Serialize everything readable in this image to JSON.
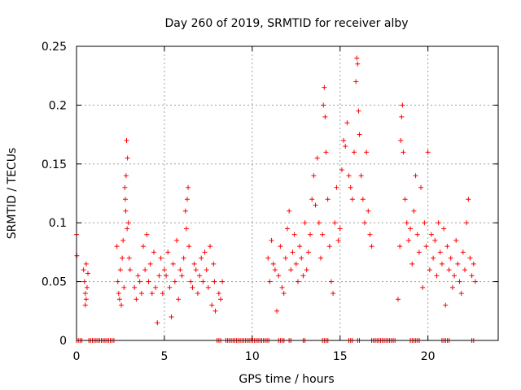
{
  "chart_data": {
    "type": "scatter",
    "title": "Day 260 of 2019, SRMTID for receiver alby",
    "xlabel": "GPS time / hours",
    "ylabel": "SRMTID / TECUs",
    "xlim": [
      0,
      24
    ],
    "ylim": [
      0,
      0.25
    ],
    "xticks": [
      0,
      5,
      10,
      15,
      20
    ],
    "xtick_labels": [
      "0",
      "5",
      "10",
      "15",
      "20"
    ],
    "yticks": [
      0,
      0.05,
      0.1,
      0.15,
      0.2,
      0.25
    ],
    "ytick_labels": [
      "0",
      "0.05",
      "0.1",
      "0.15",
      "0.2",
      "0.25"
    ],
    "grid": true,
    "marker": "+",
    "color": "#ff0000",
    "series": [
      {
        "name": "SRMTID",
        "points": [
          [
            0.0,
            0.09
          ],
          [
            0.02,
            0.072
          ],
          [
            0.4,
            0.06
          ],
          [
            0.45,
            0.05
          ],
          [
            0.5,
            0.04
          ],
          [
            0.55,
            0.035
          ],
          [
            0.6,
            0.045
          ],
          [
            0.65,
            0.057
          ],
          [
            0.5,
            0.03
          ],
          [
            0.55,
            0.065
          ],
          [
            2.3,
            0.08
          ],
          [
            2.35,
            0.05
          ],
          [
            2.4,
            0.04
          ],
          [
            2.45,
            0.035
          ],
          [
            2.5,
            0.06
          ],
          [
            2.55,
            0.03
          ],
          [
            2.6,
            0.07
          ],
          [
            2.65,
            0.085
          ],
          [
            2.7,
            0.045
          ],
          [
            2.75,
            0.13
          ],
          [
            2.8,
            0.11
          ],
          [
            2.85,
            0.17
          ],
          [
            2.9,
            0.155
          ],
          [
            2.95,
            0.1
          ],
          [
            2.78,
            0.12
          ],
          [
            2.82,
            0.14
          ],
          [
            2.88,
            0.095
          ],
          [
            3.0,
            0.07
          ],
          [
            3.05,
            0.06
          ],
          [
            3.3,
            0.045
          ],
          [
            3.4,
            0.035
          ],
          [
            3.5,
            0.055
          ],
          [
            3.6,
            0.05
          ],
          [
            3.7,
            0.04
          ],
          [
            3.8,
            0.08
          ],
          [
            3.9,
            0.06
          ],
          [
            4.0,
            0.09
          ],
          [
            4.1,
            0.05
          ],
          [
            4.2,
            0.065
          ],
          [
            4.3,
            0.04
          ],
          [
            4.4,
            0.075
          ],
          [
            4.5,
            0.045
          ],
          [
            4.6,
            0.015
          ],
          [
            4.7,
            0.055
          ],
          [
            4.8,
            0.07
          ],
          [
            4.9,
            0.04
          ],
          [
            5.0,
            0.06
          ],
          [
            5.1,
            0.055
          ],
          [
            5.2,
            0.075
          ],
          [
            5.3,
            0.045
          ],
          [
            5.4,
            0.02
          ],
          [
            5.5,
            0.065
          ],
          [
            5.6,
            0.05
          ],
          [
            5.7,
            0.085
          ],
          [
            5.8,
            0.035
          ],
          [
            5.9,
            0.06
          ],
          [
            6.0,
            0.055
          ],
          [
            6.1,
            0.07
          ],
          [
            6.2,
            0.11
          ],
          [
            6.25,
            0.095
          ],
          [
            6.3,
            0.12
          ],
          [
            6.35,
            0.13
          ],
          [
            6.4,
            0.08
          ],
          [
            6.5,
            0.05
          ],
          [
            6.6,
            0.045
          ],
          [
            6.7,
            0.065
          ],
          [
            6.8,
            0.06
          ],
          [
            6.9,
            0.04
          ],
          [
            7.0,
            0.055
          ],
          [
            7.1,
            0.07
          ],
          [
            7.2,
            0.05
          ],
          [
            7.3,
            0.075
          ],
          [
            7.4,
            0.06
          ],
          [
            7.5,
            0.045
          ],
          [
            7.6,
            0.08
          ],
          [
            7.7,
            0.03
          ],
          [
            7.8,
            0.065
          ],
          [
            7.85,
            0.05
          ],
          [
            7.9,
            0.025
          ],
          [
            8.1,
            0.04
          ],
          [
            8.2,
            0.035
          ],
          [
            8.3,
            0.05
          ],
          [
            10.9,
            0.07
          ],
          [
            11.0,
            0.05
          ],
          [
            11.1,
            0.085
          ],
          [
            11.2,
            0.065
          ],
          [
            11.3,
            0.06
          ],
          [
            11.4,
            0.025
          ],
          [
            11.5,
            0.055
          ],
          [
            11.6,
            0.08
          ],
          [
            11.7,
            0.045
          ],
          [
            11.8,
            0.04
          ],
          [
            11.9,
            0.07
          ],
          [
            12.0,
            0.095
          ],
          [
            12.1,
            0.11
          ],
          [
            12.2,
            0.06
          ],
          [
            12.3,
            0.075
          ],
          [
            12.4,
            0.09
          ],
          [
            12.5,
            0.065
          ],
          [
            12.6,
            0.05
          ],
          [
            12.7,
            0.08
          ],
          [
            12.8,
            0.07
          ],
          [
            12.9,
            0.055
          ],
          [
            13.0,
            0.1
          ],
          [
            13.1,
            0.06
          ],
          [
            13.2,
            0.075
          ],
          [
            13.3,
            0.09
          ],
          [
            13.4,
            0.12
          ],
          [
            13.5,
            0.14
          ],
          [
            13.6,
            0.115
          ],
          [
            13.7,
            0.155
          ],
          [
            13.8,
            0.1
          ],
          [
            13.9,
            0.07
          ],
          [
            14.0,
            0.09
          ],
          [
            14.05,
            0.2
          ],
          [
            14.1,
            0.215
          ],
          [
            14.15,
            0.19
          ],
          [
            14.2,
            0.16
          ],
          [
            14.3,
            0.12
          ],
          [
            14.4,
            0.08
          ],
          [
            14.5,
            0.05
          ],
          [
            14.6,
            0.04
          ],
          [
            14.7,
            0.1
          ],
          [
            14.8,
            0.13
          ],
          [
            14.9,
            0.085
          ],
          [
            15.0,
            0.095
          ],
          [
            15.1,
            0.145
          ],
          [
            15.2,
            0.17
          ],
          [
            15.3,
            0.165
          ],
          [
            15.4,
            0.185
          ],
          [
            15.5,
            0.14
          ],
          [
            15.6,
            0.13
          ],
          [
            15.7,
            0.12
          ],
          [
            15.8,
            0.16
          ],
          [
            15.9,
            0.22
          ],
          [
            15.95,
            0.24
          ],
          [
            16.0,
            0.235
          ],
          [
            16.05,
            0.195
          ],
          [
            16.1,
            0.175
          ],
          [
            16.2,
            0.14
          ],
          [
            16.3,
            0.12
          ],
          [
            16.4,
            0.1
          ],
          [
            16.5,
            0.16
          ],
          [
            16.6,
            0.11
          ],
          [
            16.7,
            0.09
          ],
          [
            16.8,
            0.08
          ],
          [
            18.3,
            0.035
          ],
          [
            18.4,
            0.08
          ],
          [
            18.45,
            0.17
          ],
          [
            18.5,
            0.19
          ],
          [
            18.55,
            0.2
          ],
          [
            18.6,
            0.16
          ],
          [
            18.7,
            0.12
          ],
          [
            18.8,
            0.1
          ],
          [
            18.9,
            0.085
          ],
          [
            19.0,
            0.095
          ],
          [
            19.1,
            0.065
          ],
          [
            19.2,
            0.11
          ],
          [
            19.3,
            0.14
          ],
          [
            19.4,
            0.09
          ],
          [
            19.5,
            0.075
          ],
          [
            19.6,
            0.13
          ],
          [
            19.7,
            0.045
          ],
          [
            19.8,
            0.1
          ],
          [
            19.9,
            0.08
          ],
          [
            20.0,
            0.16
          ],
          [
            20.1,
            0.06
          ],
          [
            20.2,
            0.09
          ],
          [
            20.3,
            0.07
          ],
          [
            20.4,
            0.085
          ],
          [
            20.5,
            0.055
          ],
          [
            20.6,
            0.1
          ],
          [
            20.7,
            0.075
          ],
          [
            20.8,
            0.065
          ],
          [
            20.9,
            0.095
          ],
          [
            21.0,
            0.03
          ],
          [
            21.1,
            0.08
          ],
          [
            21.2,
            0.06
          ],
          [
            21.3,
            0.07
          ],
          [
            21.4,
            0.045
          ],
          [
            21.5,
            0.055
          ],
          [
            21.6,
            0.085
          ],
          [
            21.7,
            0.065
          ],
          [
            21.8,
            0.05
          ],
          [
            21.9,
            0.04
          ],
          [
            22.0,
            0.075
          ],
          [
            22.1,
            0.06
          ],
          [
            22.2,
            0.1
          ],
          [
            22.3,
            0.12
          ],
          [
            22.4,
            0.07
          ],
          [
            22.5,
            0.055
          ],
          [
            22.6,
            0.065
          ],
          [
            22.7,
            0.05
          ]
        ],
        "zero_segments": [
          [
            0.0,
            0.35
          ],
          [
            0.7,
            2.2
          ],
          [
            8.0,
            8.3
          ],
          [
            8.5,
            11.0
          ],
          [
            11.5,
            11.9
          ],
          [
            12.1,
            12.3
          ],
          [
            12.9,
            13.1
          ],
          [
            14.0,
            14.4
          ],
          [
            15.5,
            15.8
          ],
          [
            16.0,
            16.2
          ],
          [
            16.8,
            18.2
          ],
          [
            19.0,
            19.6
          ],
          [
            20.8,
            21.3
          ],
          [
            22.5,
            22.7
          ]
        ]
      }
    ]
  }
}
